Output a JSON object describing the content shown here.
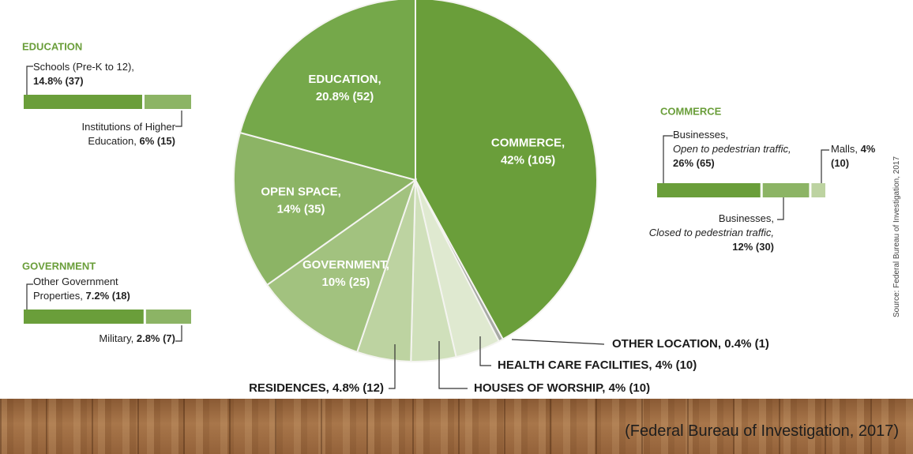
{
  "chart_data": {
    "type": "pie",
    "categories": [
      "COMMERCE,",
      "OTHER LOCATION,",
      "HEALTH CARE FACILITIES,",
      "HOUSES OF WORSHIP,",
      "RESIDENCES,",
      "GOVERNMENT,",
      "OPEN SPACE,",
      "EDUCATION,"
    ],
    "values": [
      42,
      0.4,
      4,
      4,
      4.8,
      10,
      14,
      20.8
    ],
    "value_labels": [
      "42% (105)",
      "0.4% (1)",
      "4% (10)",
      "4% (10)",
      "4.8% (12)",
      "10% (25)",
      "14% (35)",
      "20.8% (52)"
    ],
    "colors": [
      "#6a9e3a",
      "#a8aaa6",
      "#dfe9d0",
      "#d0e0bb",
      "#bdd3a1",
      "#a2c27f",
      "#8cb465",
      "#75a84a"
    ],
    "source": "Source: Federal Bureau of Investigation, 2017"
  },
  "breakdowns": [
    {
      "title": "EDUCATION",
      "items": [
        {
          "label": "Schools (Pre-K to 12),",
          "value": 14.8,
          "value_label": "14.8% (37)",
          "color": "#6a9e3a"
        },
        {
          "label": "Institutions of Higher Education,",
          "value": 6,
          "value_label": "6% (15)",
          "color": "#8cb465"
        }
      ]
    },
    {
      "title": "COMMERCE",
      "items": [
        {
          "label": "Businesses,",
          "note": "Open to pedestrian traffic,",
          "value": 26,
          "value_label": "26% (65)",
          "color": "#6a9e3a"
        },
        {
          "label": "Businesses,",
          "note": "Closed to pedestrian traffic,",
          "value": 12,
          "value_label": "12% (30)",
          "color": "#8cb465"
        },
        {
          "label": "Malls,",
          "value": 4,
          "value_label": "4% (10)",
          "color": "#bdd3a1"
        }
      ]
    },
    {
      "title": "GOVERNMENT",
      "items": [
        {
          "label": "Other Government Properties,",
          "value": 7.2,
          "value_label": "7.2% (18)",
          "color": "#6a9e3a"
        },
        {
          "label": "Military,",
          "value": 2.8,
          "value_label": "2.8% (7)",
          "color": "#8cb465"
        }
      ]
    }
  ],
  "footer": "(Federal Bureau of Investigation, 2017)"
}
